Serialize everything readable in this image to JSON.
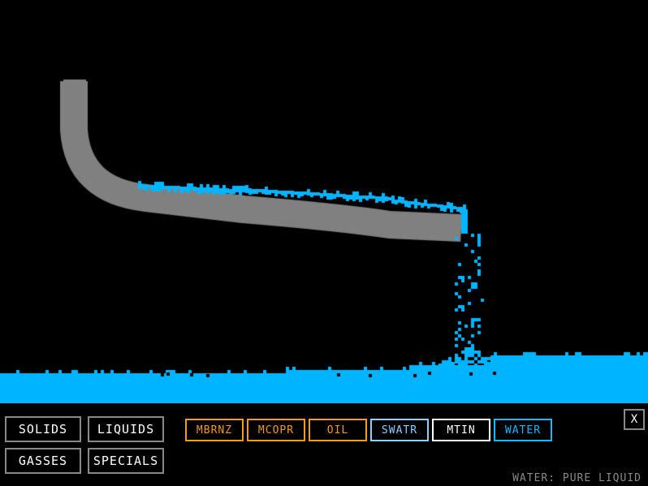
{
  "categories": [
    {
      "id": "solids",
      "label": "SOLIDS"
    },
    {
      "id": "liquids",
      "label": "LIQUIDS"
    },
    {
      "id": "gasses",
      "label": "GASSES"
    },
    {
      "id": "specials",
      "label": "SPECIALS"
    }
  ],
  "elements": [
    {
      "id": "mbrnz",
      "label": "MBRNZ",
      "color": "#f29b1e"
    },
    {
      "id": "mcopr",
      "label": "MCOPR",
      "color": "#f29b1e"
    },
    {
      "id": "oil",
      "label": "OIL",
      "color": "#f29b1e"
    },
    {
      "id": "swatr",
      "label": "SWATR",
      "color": "#8fd0ff"
    },
    {
      "id": "mtin",
      "label": "MTIN",
      "color": "#ffffff"
    },
    {
      "id": "water",
      "label": "WATER",
      "color": "#1ab8ff",
      "selected": true
    }
  ],
  "close_label": "X",
  "status_text": "WATER: PURE LIQUID",
  "colors": {
    "background": "#000000",
    "water": "#00b4ff",
    "pipe": "#808080",
    "category_border": "#8a8a8a"
  }
}
